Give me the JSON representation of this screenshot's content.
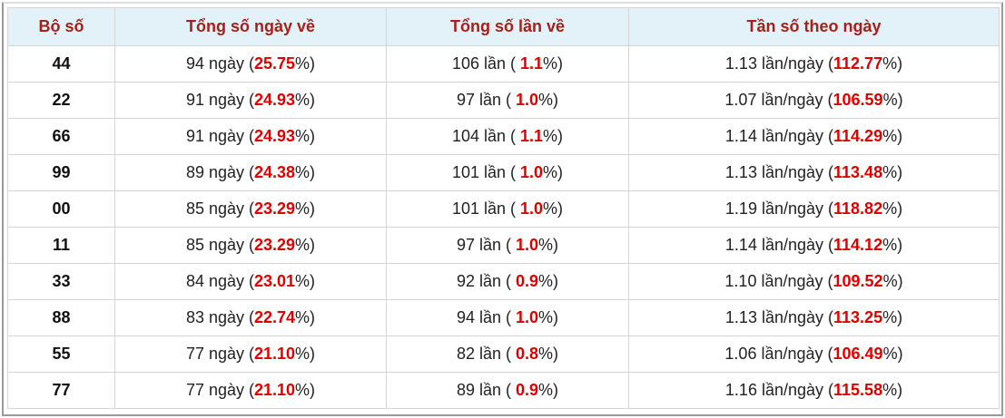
{
  "table": {
    "header": [
      "Bộ số",
      "Tổng số ngày về",
      "Tổng số lần về",
      "Tần số theo ngày"
    ],
    "rows": [
      [
        "44",
        [
          "94 ngày (",
          "25.75",
          "%)"
        ],
        [
          "106 lần ( ",
          "1.1",
          "%)"
        ],
        [
          "1.13 lần/ngày (",
          "112.77",
          "%)"
        ]
      ],
      [
        "22",
        [
          "91 ngày (",
          "24.93",
          "%)"
        ],
        [
          "97 lần ( ",
          "1.0",
          "%)"
        ],
        [
          "1.07 lần/ngày (",
          "106.59",
          "%)"
        ]
      ],
      [
        "66",
        [
          "91 ngày (",
          "24.93",
          "%)"
        ],
        [
          "104 lần ( ",
          "1.1",
          "%)"
        ],
        [
          "1.14 lần/ngày (",
          "114.29",
          "%)"
        ]
      ],
      [
        "99",
        [
          "89 ngày (",
          "24.38",
          "%)"
        ],
        [
          "101 lần ( ",
          "1.0",
          "%)"
        ],
        [
          "1.13 lần/ngày (",
          "113.48",
          "%)"
        ]
      ],
      [
        "00",
        [
          "85 ngày (",
          "23.29",
          "%)"
        ],
        [
          "101 lần ( ",
          "1.0",
          "%)"
        ],
        [
          "1.19 lần/ngày (",
          "118.82",
          "%)"
        ]
      ],
      [
        "11",
        [
          "85 ngày (",
          "23.29",
          "%)"
        ],
        [
          "97 lần ( ",
          "1.0",
          "%)"
        ],
        [
          "1.14 lần/ngày (",
          "114.12",
          "%)"
        ]
      ],
      [
        "33",
        [
          "84 ngày (",
          "23.01",
          "%)"
        ],
        [
          "92 lần ( ",
          "0.9",
          "%)"
        ],
        [
          "1.10 lần/ngày (",
          "109.52",
          "%)"
        ]
      ],
      [
        "88",
        [
          "83 ngày (",
          "22.74",
          "%)"
        ],
        [
          "94 lần ( ",
          "1.0",
          "%)"
        ],
        [
          "1.13 lần/ngày (",
          "113.25",
          "%)"
        ]
      ],
      [
        "55",
        [
          "77 ngày (",
          "21.10",
          "%)"
        ],
        [
          "82 lần ( ",
          "0.8",
          "%)"
        ],
        [
          "1.06 lần/ngày (",
          "106.49",
          "%)"
        ]
      ],
      [
        "77",
        [
          "77 ngày (",
          "21.10",
          "%)"
        ],
        [
          "89 lần ( ",
          "0.9",
          "%)"
        ],
        [
          "1.16 lần/ngày (",
          "115.58",
          "%)"
        ]
      ]
    ]
  }
}
